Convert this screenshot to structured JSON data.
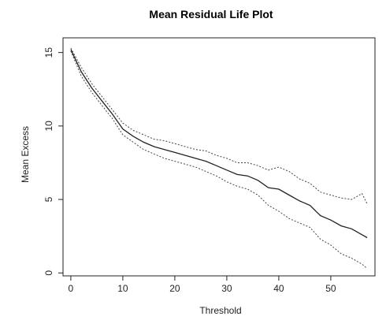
{
  "chart_data": {
    "type": "line",
    "title": "Mean Residual Life Plot",
    "xlabel": "Threshold",
    "ylabel": "Mean Excess",
    "xlim": [
      -1.5,
      58.5
    ],
    "ylim": [
      -0.2,
      16
    ],
    "xticks": [
      0,
      10,
      20,
      30,
      40,
      50
    ],
    "yticks": [
      0,
      5,
      10,
      15
    ],
    "grid": false,
    "legend": "none",
    "x": [
      0,
      2,
      4,
      6,
      8,
      10,
      12,
      14,
      16,
      18,
      20,
      22,
      24,
      26,
      28,
      30,
      32,
      34,
      36,
      38,
      40,
      42,
      44,
      46,
      48,
      50,
      52,
      54,
      56,
      57
    ],
    "series": [
      {
        "role": "estimate",
        "style": "solid",
        "color": "#222222",
        "values": [
          15.2,
          13.7,
          12.6,
          11.7,
          10.8,
          9.8,
          9.3,
          8.9,
          8.6,
          8.4,
          8.2,
          8.0,
          7.8,
          7.6,
          7.3,
          7.0,
          6.7,
          6.6,
          6.3,
          5.8,
          5.7,
          5.3,
          4.9,
          4.6,
          3.9,
          3.6,
          3.2,
          3.0,
          2.6,
          2.4
        ]
      },
      {
        "role": "upper confidence bound",
        "style": "dashed",
        "color": "#444444",
        "values": [
          15.3,
          14.0,
          12.9,
          12.0,
          11.1,
          10.2,
          9.7,
          9.4,
          9.1,
          9.0,
          8.8,
          8.6,
          8.4,
          8.3,
          8.0,
          7.8,
          7.5,
          7.5,
          7.3,
          7.0,
          7.2,
          6.9,
          6.4,
          6.1,
          5.5,
          5.3,
          5.1,
          5.0,
          5.4,
          4.7
        ]
      },
      {
        "role": "lower confidence bound",
        "style": "dashed",
        "color": "#444444",
        "values": [
          15.1,
          13.4,
          12.3,
          11.4,
          10.5,
          9.4,
          8.9,
          8.4,
          8.1,
          7.8,
          7.6,
          7.4,
          7.2,
          6.9,
          6.6,
          6.2,
          5.9,
          5.7,
          5.3,
          4.6,
          4.2,
          3.7,
          3.4,
          3.1,
          2.3,
          1.9,
          1.3,
          1.0,
          0.6,
          0.3
        ]
      }
    ]
  }
}
